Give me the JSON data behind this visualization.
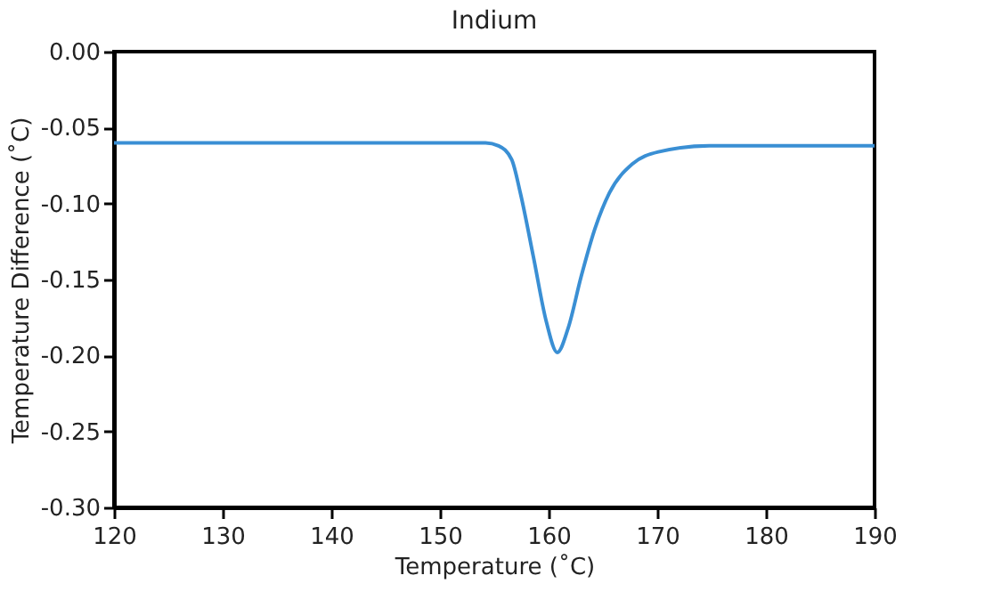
{
  "chart_data": {
    "type": "line",
    "title": "Indium",
    "xlabel": "Temperature (˚C)",
    "ylabel": "Temperature Difference (˚C)",
    "series": [
      {
        "color": "#3a8fd4",
        "x": [
          120,
          154.2,
          155.4,
          156.6,
          157.4,
          158.6,
          159.8,
          160.8,
          161.8,
          163.0,
          164.2,
          165.6,
          167.7,
          170.1,
          174.8,
          190
        ],
        "values": [
          -0.06,
          -0.06,
          -0.062,
          -0.071,
          -0.093,
          -0.135,
          -0.178,
          -0.198,
          -0.182,
          -0.148,
          -0.118,
          -0.093,
          -0.074,
          -0.066,
          -0.062,
          -0.062
        ]
      }
    ],
    "xlim": [
      120,
      190
    ],
    "xticks": [
      120,
      130,
      140,
      150,
      160,
      170,
      180,
      190
    ],
    "ylim": [
      -0.3,
      0
    ],
    "yticks": [
      {
        "value": -0.3,
        "label": "-0.30"
      },
      {
        "value": -0.25,
        "label": "-0.25"
      },
      {
        "value": -0.2,
        "label": "-0.20"
      },
      {
        "value": -0.15,
        "label": "-0.15"
      },
      {
        "value": -0.1,
        "label": "-0.10"
      },
      {
        "value": -0.05,
        "label": "-0.05"
      },
      {
        "value": 0,
        "label": "0.00"
      }
    ],
    "grid": false,
    "marker": "none",
    "line_style": "solid"
  }
}
